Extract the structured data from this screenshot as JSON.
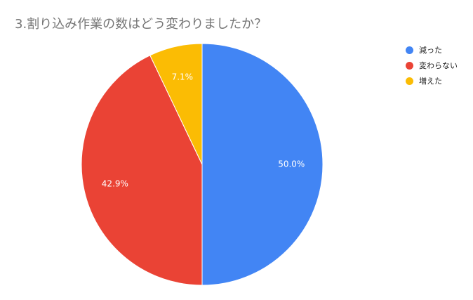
{
  "chart_data": {
    "type": "pie",
    "title": "3.割り込み作業の数はどう変わりましたか？",
    "legend_position": "right",
    "slices": [
      {
        "label": "減った",
        "value": 50.0,
        "display": "50.0%",
        "color": "#4285F4"
      },
      {
        "label": "変わらない",
        "value": 42.9,
        "display": "42.9%",
        "color": "#EA4335"
      },
      {
        "label": "増えた",
        "value": 7.1,
        "display": "7.1%",
        "color": "#FBBC04"
      }
    ]
  }
}
